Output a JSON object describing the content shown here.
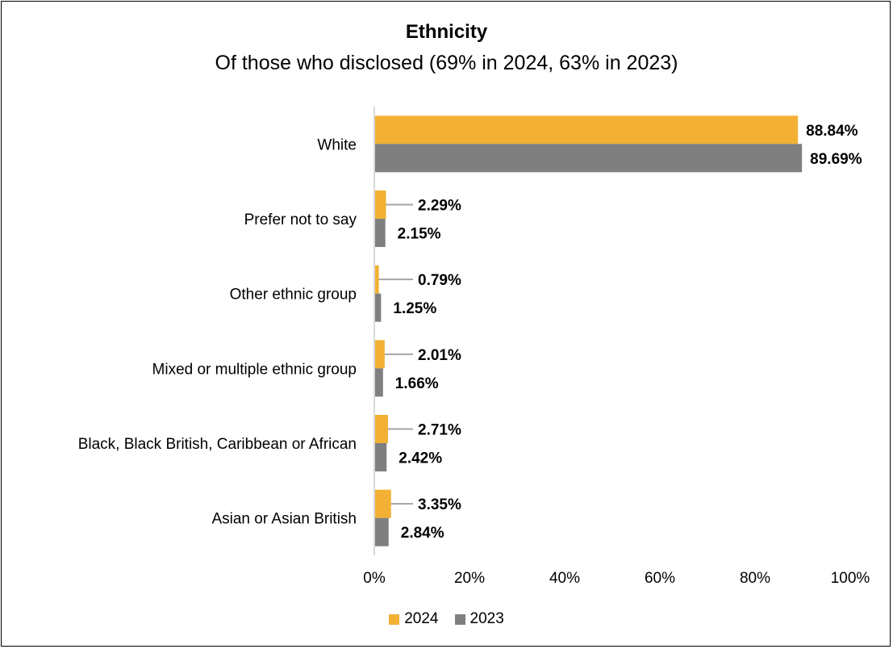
{
  "chart_data": {
    "type": "bar",
    "orientation": "horizontal",
    "title": "Ethnicity",
    "subtitle": "Of those who disclosed (69% in 2024, 63% in 2023)",
    "categories": [
      "White",
      "Prefer not to say",
      "Other ethnic group",
      "Mixed or multiple ethnic group",
      "Black, Black British, Caribbean or African",
      "Asian or Asian British"
    ],
    "series": [
      {
        "name": "2024",
        "color": "#F2B134",
        "values": [
          88.84,
          2.29,
          0.79,
          2.01,
          2.71,
          3.35
        ],
        "labels": [
          "88.84%",
          "2.29%",
          "0.79%",
          "2.01%",
          "2.71%",
          "3.35%"
        ]
      },
      {
        "name": "2023",
        "color": "#7F7F7F",
        "values": [
          89.69,
          2.15,
          1.25,
          1.66,
          2.42,
          2.84
        ],
        "labels": [
          "89.69%",
          "2.15%",
          "1.25%",
          "1.66%",
          "2.42%",
          "2.84%"
        ]
      }
    ],
    "xlim": [
      0,
      100
    ],
    "xticks": [
      "0%",
      "20%",
      "40%",
      "60%",
      "80%",
      "100%"
    ],
    "xlabel": "",
    "ylabel": "",
    "grid": false,
    "legend_position": "bottom"
  }
}
